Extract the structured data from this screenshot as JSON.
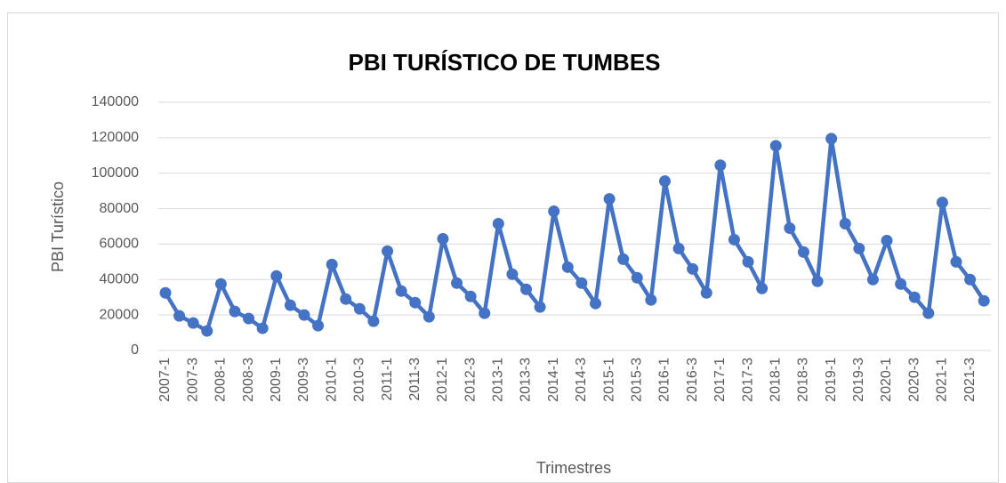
{
  "chart_data": {
    "type": "line",
    "title": "PBI TURÍSTICO DE TUMBES",
    "x_label": "Trimestres",
    "y_label": "PBI Turístico",
    "categories": [
      "2007-1",
      null,
      "2007-3",
      null,
      "2008-1",
      null,
      "2008-3",
      null,
      "2009-1",
      null,
      "2009-3",
      null,
      "2010-1",
      null,
      "2010-3",
      null,
      "2011-1",
      null,
      "2011-3",
      null,
      "2012-1",
      null,
      "2012-3",
      null,
      "2013-1",
      null,
      "2013-3",
      null,
      "2014-1",
      null,
      "2014-3",
      null,
      "2015-1",
      null,
      "2015-3",
      null,
      "2016-1",
      null,
      "2016-3",
      null,
      "2017-1",
      null,
      "2017-3",
      null,
      "2018-1",
      null,
      "2018-3",
      null,
      "2019-1",
      null,
      "2019-3",
      null,
      "2020-1",
      null,
      "2020-3",
      null,
      "2021-1",
      null,
      "2021-3",
      null
    ],
    "series": [
      {
        "name": "PBI Turístico",
        "color": "#4472c4",
        "values": [
          32500,
          19500,
          15500,
          11000,
          37500,
          22000,
          18000,
          12500,
          42000,
          25500,
          20000,
          14000,
          48500,
          29000,
          23500,
          16500,
          56000,
          33500,
          27000,
          19000,
          63000,
          38000,
          30500,
          21000,
          71500,
          43000,
          34500,
          24500,
          78500,
          47000,
          38000,
          26500,
          85500,
          51500,
          41000,
          28500,
          95500,
          57500,
          46000,
          32500,
          104500,
          62500,
          50000,
          35000,
          115500,
          69000,
          55500,
          39000,
          119500,
          71500,
          57500,
          40000,
          62000,
          37500,
          30000,
          21000,
          83500,
          50000,
          40000,
          28000
        ]
      }
    ],
    "ylim": [
      0,
      140000
    ],
    "yticks": [
      0,
      20000,
      40000,
      60000,
      80000,
      100000,
      120000,
      140000
    ],
    "grid": true
  }
}
